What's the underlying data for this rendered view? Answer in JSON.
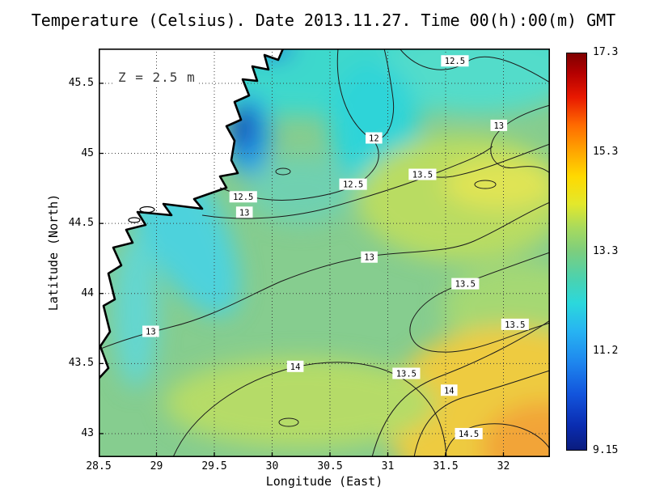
{
  "chart_data": {
    "type": "heatmap",
    "title": "Temperature (Celsius). Date 2013.11.27. Time 00(h):00(m) GMT",
    "annotation": "Z = 2.5 m",
    "xlabel": "Longitude (East)",
    "ylabel": "Latitude (North)",
    "units": "Celsius",
    "x_ticks": [
      "28.5",
      "29",
      "29.5",
      "30",
      "30.5",
      "31",
      "31.5",
      "32"
    ],
    "y_ticks": [
      "45.5",
      "45",
      "44.5",
      "44",
      "43.5",
      "43"
    ],
    "xlim": [
      28.5,
      32.4
    ],
    "ylim": [
      42.83,
      45.75
    ],
    "grid": true,
    "land_color": "#ffffff",
    "coast_color": "#000000",
    "colorbar": {
      "min": 9.15,
      "max": 17.3,
      "tick_labels": [
        "17.3",
        "15.3",
        "13.3",
        "11.2",
        "9.15"
      ],
      "stops": [
        {
          "pos": 0.0,
          "color": "#7F0000"
        },
        {
          "pos": 0.05,
          "color": "#B40000"
        },
        {
          "pos": 0.11,
          "color": "#E81800"
        },
        {
          "pos": 0.18,
          "color": "#FF6A00"
        },
        {
          "pos": 0.25,
          "color": "#FFA800"
        },
        {
          "pos": 0.31,
          "color": "#FFD900"
        },
        {
          "pos": 0.38,
          "color": "#E3E82C"
        },
        {
          "pos": 0.44,
          "color": "#A8DA5D"
        },
        {
          "pos": 0.5,
          "color": "#7CCE7E"
        },
        {
          "pos": 0.57,
          "color": "#4AD2B0"
        },
        {
          "pos": 0.63,
          "color": "#2BD8DC"
        },
        {
          "pos": 0.7,
          "color": "#27B4F2"
        },
        {
          "pos": 0.78,
          "color": "#1E86EE"
        },
        {
          "pos": 0.86,
          "color": "#1254DC"
        },
        {
          "pos": 0.94,
          "color": "#0A2CB0"
        },
        {
          "pos": 1.0,
          "color": "#0A1C7E"
        }
      ]
    },
    "contour_labels": [
      {
        "value": "12.5",
        "lon": 31.58,
        "lat": 45.66
      },
      {
        "value": "13",
        "lon": 31.96,
        "lat": 45.2
      },
      {
        "value": "12",
        "lon": 30.88,
        "lat": 45.11
      },
      {
        "value": "13.5",
        "lon": 31.3,
        "lat": 44.85
      },
      {
        "value": "12.5",
        "lon": 30.7,
        "lat": 44.78
      },
      {
        "value": "12.5",
        "lon": 29.75,
        "lat": 44.69
      },
      {
        "value": "13",
        "lon": 29.76,
        "lat": 44.58
      },
      {
        "value": "13",
        "lon": 30.84,
        "lat": 44.26
      },
      {
        "value": "13.5",
        "lon": 31.67,
        "lat": 44.07
      },
      {
        "value": "13",
        "lon": 28.95,
        "lat": 43.73
      },
      {
        "value": "13.5",
        "lon": 32.1,
        "lat": 43.78
      },
      {
        "value": "14",
        "lon": 30.2,
        "lat": 43.48
      },
      {
        "value": "13.5",
        "lon": 31.16,
        "lat": 43.43
      },
      {
        "value": "14",
        "lon": 31.53,
        "lat": 43.31
      },
      {
        "value": "14.5",
        "lon": 31.7,
        "lat": 43.0
      }
    ]
  }
}
